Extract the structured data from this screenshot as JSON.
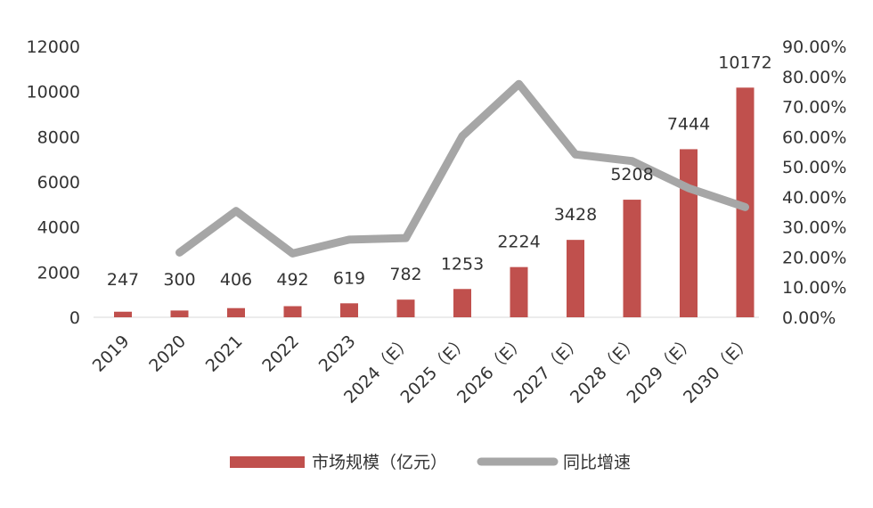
{
  "chart_data": {
    "type": "bar",
    "categories": [
      "2019",
      "2020",
      "2021",
      "2022",
      "2023",
      "2024（E）",
      "2025（E）",
      "2026（E）",
      "2027（E）",
      "2028（E）",
      "2029（E）",
      "2030（E）"
    ],
    "series": [
      {
        "name": "市场规模（亿元）",
        "type": "bar",
        "axis": "left",
        "color": "#c0504d",
        "values": [
          247,
          300,
          406,
          492,
          619,
          782,
          1253,
          2224,
          3428,
          5208,
          7444,
          10172
        ],
        "data_labels": [
          "247",
          "300",
          "406",
          "492",
          "619",
          "782",
          "1253",
          "2224",
          "3428",
          "5208",
          "7444",
          "10172"
        ]
      },
      {
        "name": "同比增速",
        "type": "line",
        "axis": "right",
        "color": "#a6a6a6",
        "values": [
          null,
          21.5,
          35.3,
          21.2,
          25.8,
          26.3,
          60.2,
          77.5,
          54.1,
          51.9,
          42.9,
          36.6
        ]
      }
    ],
    "left_axis": {
      "ylim": [
        0,
        12000
      ],
      "ticks": [
        "0",
        "2000",
        "4000",
        "6000",
        "8000",
        "10000",
        "12000"
      ]
    },
    "right_axis": {
      "ylim": [
        0,
        90
      ],
      "ticks": [
        "0.00%",
        "10.00%",
        "20.00%",
        "30.00%",
        "40.00%",
        "50.00%",
        "60.00%",
        "70.00%",
        "80.00%",
        "90.00%"
      ]
    },
    "xlabel": "",
    "ylabel": "",
    "title": "",
    "grid": false,
    "legend": "bottom"
  }
}
